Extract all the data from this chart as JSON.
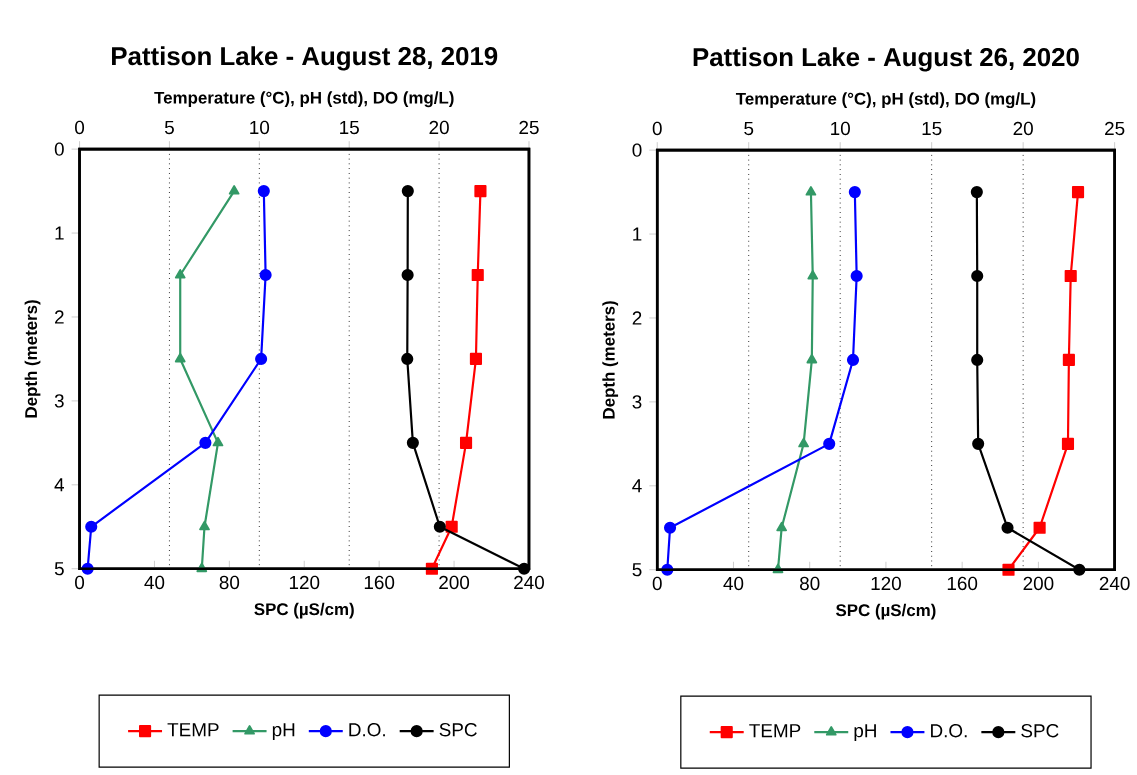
{
  "chart_data": [
    {
      "type": "line",
      "title": "Pattison Lake - August 28, 2019",
      "xlabel": "SPC (µS/cm)",
      "x2label": "Temperature (°C), pH (std), DO (mg/L)",
      "ylabel": "Depth (meters)",
      "xlim": [
        0,
        240
      ],
      "xticks": [
        0,
        40,
        80,
        120,
        160,
        200,
        240
      ],
      "x2lim": [
        0,
        25
      ],
      "x2ticks": [
        0,
        5,
        10,
        15,
        20,
        25
      ],
      "ylim": [
        5,
        0
      ],
      "yticks": [
        0,
        1,
        2,
        3,
        4,
        5
      ],
      "grid": "x2",
      "legend": "bottom",
      "series": [
        {
          "name": "TEMP",
          "color": "#ff0000",
          "marker": "square",
          "axis": "x2",
          "x": [
            22.3,
            22.15,
            22.05,
            21.5,
            20.7,
            19.6
          ],
          "values": [
            0.5,
            1.5,
            2.5,
            3.5,
            4.5,
            5
          ]
        },
        {
          "name": "pH",
          "color": "#339966",
          "marker": "triangle",
          "axis": "x2",
          "x": [
            8.6,
            5.6,
            5.6,
            7.7,
            6.95,
            6.8
          ],
          "values": [
            0.5,
            1.5,
            2.5,
            3.5,
            4.5,
            5
          ]
        },
        {
          "name": "D.O.",
          "color": "#0000ff",
          "marker": "circle",
          "axis": "x2",
          "x": [
            10.25,
            10.35,
            10.1,
            7.0,
            0.65,
            0.45
          ],
          "values": [
            0.5,
            1.5,
            2.5,
            3.5,
            4.5,
            5
          ]
        },
        {
          "name": "SPC",
          "color": "#000000",
          "marker": "circle",
          "x": [
            175.3,
            175.2,
            175,
            178,
            192.4,
            237.4
          ],
          "values": [
            0.5,
            1.5,
            2.5,
            3.5,
            4.5,
            5
          ]
        }
      ]
    },
    {
      "type": "line",
      "title": "Pattison Lake - August 26, 2020",
      "xlabel": "SPC (µS/cm)",
      "x2label": "Temperature (°C), pH (std), DO (mg/L)",
      "ylabel": "Depth (meters)",
      "xlim": [
        0,
        240
      ],
      "xticks": [
        0,
        40,
        80,
        120,
        160,
        200,
        240
      ],
      "x2lim": [
        0,
        25
      ],
      "x2ticks": [
        0,
        5,
        10,
        15,
        20,
        25
      ],
      "ylim": [
        5,
        0
      ],
      "yticks": [
        0,
        1,
        2,
        3,
        4,
        5
      ],
      "grid": "x2",
      "legend": "bottom",
      "series": [
        {
          "name": "TEMP",
          "color": "#ff0000",
          "marker": "square",
          "axis": "x2",
          "x": [
            23.0,
            22.6,
            22.5,
            22.45,
            20.9,
            19.2
          ],
          "values": [
            0.5,
            1.5,
            2.5,
            3.5,
            4.5,
            5
          ]
        },
        {
          "name": "pH",
          "color": "#339966",
          "marker": "triangle",
          "axis": "x2",
          "x": [
            8.4,
            8.5,
            8.45,
            8.0,
            6.8,
            6.6
          ],
          "values": [
            0.5,
            1.5,
            2.5,
            3.5,
            4.5,
            5
          ]
        },
        {
          "name": "D.O.",
          "color": "#0000ff",
          "marker": "circle",
          "axis": "x2",
          "x": [
            10.8,
            10.9,
            10.7,
            9.4,
            0.7,
            0.55
          ],
          "values": [
            0.5,
            1.5,
            2.5,
            3.5,
            4.5,
            5
          ]
        },
        {
          "name": "SPC",
          "color": "#000000",
          "marker": "circle",
          "x": [
            167.7,
            167.9,
            167.9,
            168.4,
            183.8,
            221.5
          ],
          "values": [
            0.5,
            1.5,
            2.5,
            3.5,
            4.5,
            5
          ]
        }
      ]
    }
  ]
}
